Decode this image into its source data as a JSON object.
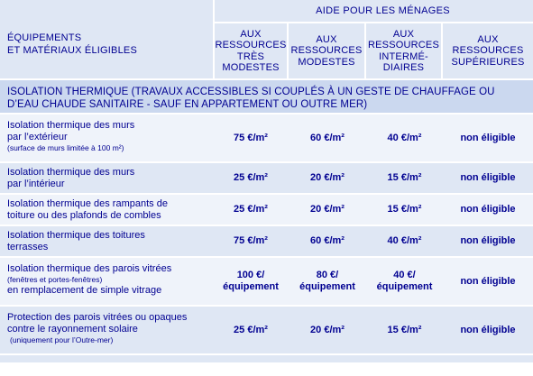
{
  "header": {
    "label_line1": "ÉQUIPEMENTS",
    "label_line2": "ET MATÉRIAUX ÉLIGIBLES",
    "group": "AIDE POUR LES MÉNAGES",
    "columns": [
      [
        "AUX",
        "RESSOURCES",
        "TRÈS",
        "MODESTES"
      ],
      [
        "AUX",
        "RESSOURCES",
        "MODESTES"
      ],
      [
        "AUX",
        "RESSOURCES",
        "INTERMÉ-",
        "DIAIRES"
      ],
      [
        "AUX",
        "RESSOURCES",
        "SUPÉRIEURES"
      ]
    ]
  },
  "section": {
    "line1": "ISOLATION THERMIQUE (TRAVAUX ACCESSIBLES SI COUPLÉS À UN GESTE DE CHAUFFAGE OU",
    "line2": "D’EAU CHAUDE SANITAIRE - SAUF EN APPARTEMENT OU OUTRE MER)"
  },
  "rows": [
    {
      "label1": "Isolation thermique des murs",
      "label2": "par l’extérieur",
      "note": "(surface de murs limitée à 100 m²)",
      "v1": "75 €/m²",
      "v2": "60 €/m²",
      "v3": "40 €/m²",
      "v4": "non éligible"
    },
    {
      "label1": "Isolation thermique des murs",
      "label2": "par l’intérieur",
      "v1": "25 €/m²",
      "v2": "20 €/m²",
      "v3": "15 €/m²",
      "v4": "non éligible"
    },
    {
      "label1": "Isolation thermique des rampants de",
      "label2": "toiture ou des plafonds de combles",
      "v1": "25 €/m²",
      "v2": "20 €/m²",
      "v3": "15 €/m²",
      "v4": "non éligible"
    },
    {
      "label1": "Isolation thermique des toitures",
      "label2": "terrasses",
      "v1": "75 €/m²",
      "v2": "60 €/m²",
      "v3": "40 €/m²",
      "v4": "non éligible"
    },
    {
      "label1": "Isolation thermique des parois vitrées",
      "note": "(fenêtres et portes-fenêtres)",
      "label2": "en remplacement de simple vitrage",
      "v1a": "100 €/",
      "v1b": "équipement",
      "v2a": "80 €/",
      "v2b": "équipement",
      "v3a": "40 €/",
      "v3b": "équipement",
      "v4": "non éligible"
    },
    {
      "label1": "Protection des parois vitrées ou opaques",
      "label2": "contre le rayonnement solaire",
      "note": "(uniquement pour l’Outre-mer)",
      "v1": "25 €/m²",
      "v2": "20 €/m²",
      "v3": "15 €/m²",
      "v4": "non éligible"
    }
  ],
  "colors": {
    "text": "#000091",
    "header_bg": "#dfe7f4",
    "section_bg": "#cbd8ef",
    "row_light": "#eff3fa",
    "row_dark": "#dfe7f4"
  }
}
